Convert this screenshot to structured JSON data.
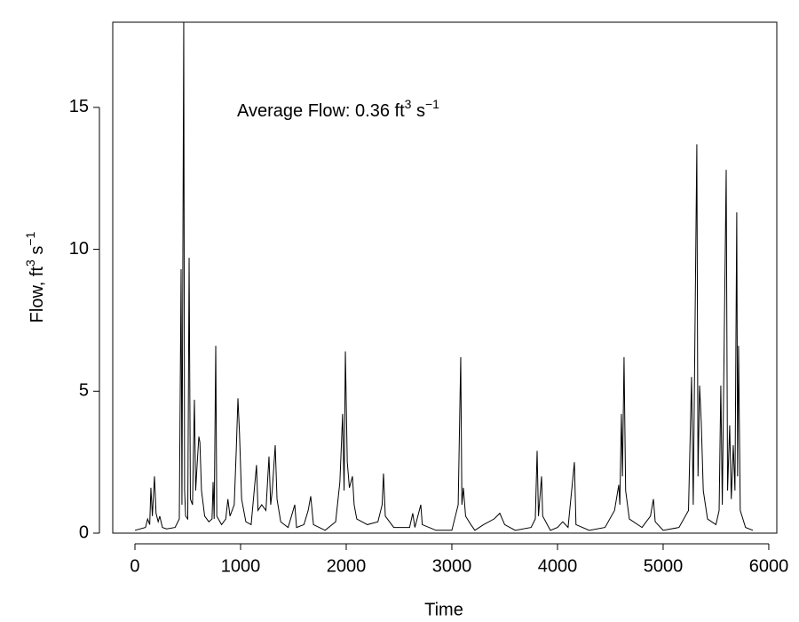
{
  "chart_data": {
    "type": "line",
    "x_label": "Time",
    "y_label": [
      "Flow, ft",
      "3",
      " s",
      "−1"
    ],
    "annotation": [
      "Average Flow: 0.36 ft",
      "3",
      " s",
      "−1"
    ],
    "color": "#000000",
    "xlim": [
      -210,
      6076
    ],
    "ylim": [
      0,
      18
    ],
    "xticks": [
      0,
      1000,
      2000,
      3000,
      4000,
      5000,
      6000
    ],
    "yticks": [
      0,
      5,
      10,
      15
    ],
    "grid": false,
    "x": [
      0,
      100,
      120,
      140,
      151,
      165,
      185,
      200,
      220,
      235,
      260,
      300,
      380,
      420,
      437,
      445,
      462,
      470,
      480,
      500,
      513,
      525,
      545,
      563,
      575,
      590,
      605,
      615,
      630,
      660,
      700,
      730,
      740,
      750,
      765,
      775,
      820,
      860,
      880,
      900,
      940,
      960,
      975,
      990,
      1010,
      1050,
      1100,
      1151,
      1165,
      1200,
      1240,
      1269,
      1285,
      1300,
      1328,
      1345,
      1380,
      1450,
      1513,
      1530,
      1600,
      1640,
      1664,
      1690,
      1800,
      1900,
      1940,
      1966,
      1980,
      1992,
      2010,
      2030,
      2059,
      2075,
      2100,
      2200,
      2300,
      2340,
      2353,
      2370,
      2450,
      2600,
      2630,
      2650,
      2706,
      2720,
      2850,
      3000,
      3060,
      3084,
      3095,
      3109,
      3130,
      3180,
      3218,
      3300,
      3400,
      3454,
      3500,
      3600,
      3750,
      3790,
      3807,
      3820,
      3849,
      3860,
      3933,
      4000,
      4050,
      4100,
      4160,
      4175,
      4300,
      4450,
      4540,
      4580,
      4590,
      4605,
      4615,
      4630,
      4645,
      4680,
      4800,
      4880,
      4908,
      4925,
      5000,
      5150,
      5240,
      5269,
      5285,
      5319,
      5330,
      5345,
      5361,
      5380,
      5420,
      5500,
      5530,
      5546,
      5560,
      5597,
      5610,
      5630,
      5645,
      5664,
      5680,
      5697,
      5705,
      5714,
      5730,
      5780,
      5850
    ],
    "values": [
      0.1,
      0.2,
      0.5,
      0.3,
      1.6,
      0.6,
      2.0,
      0.7,
      0.4,
      0.6,
      0.2,
      0.15,
      0.2,
      0.5,
      9.3,
      1.0,
      18,
      1.5,
      0.6,
      0.5,
      9.7,
      1.2,
      1.0,
      4.7,
      1.5,
      2.5,
      3.4,
      3.2,
      1.5,
      0.6,
      0.4,
      0.5,
      1.8,
      0.5,
      6.6,
      0.6,
      0.3,
      0.5,
      1.2,
      0.6,
      1.0,
      3.0,
      4.75,
      3.5,
      1.2,
      0.4,
      0.3,
      2.4,
      0.8,
      1.0,
      0.8,
      2.7,
      1.0,
      1.5,
      3.1,
      1.2,
      0.4,
      0.2,
      1.0,
      0.2,
      0.3,
      0.8,
      1.3,
      0.3,
      0.1,
      0.4,
      1.8,
      4.2,
      1.5,
      6.4,
      2.5,
      1.6,
      2.0,
      1.0,
      0.5,
      0.3,
      0.4,
      1.0,
      2.1,
      0.6,
      0.2,
      0.2,
      0.7,
      0.2,
      1.0,
      0.3,
      0.1,
      0.1,
      1.0,
      6.2,
      1.0,
      1.6,
      0.6,
      0.3,
      0.1,
      0.3,
      0.5,
      0.7,
      0.3,
      0.1,
      0.2,
      0.5,
      2.9,
      0.6,
      2.0,
      0.6,
      0.1,
      0.2,
      0.4,
      0.2,
      2.5,
      0.3,
      0.1,
      0.2,
      0.8,
      1.7,
      1.0,
      4.2,
      2.0,
      6.2,
      1.5,
      0.5,
      0.2,
      0.6,
      1.2,
      0.4,
      0.1,
      0.2,
      0.8,
      5.5,
      1.0,
      13.7,
      2.0,
      5.2,
      3.9,
      1.5,
      0.5,
      0.3,
      0.8,
      5.2,
      1.0,
      12.8,
      1.5,
      3.8,
      1.2,
      3.1,
      1.5,
      11.3,
      2.0,
      6.6,
      0.8,
      0.2,
      0.1
    ]
  }
}
